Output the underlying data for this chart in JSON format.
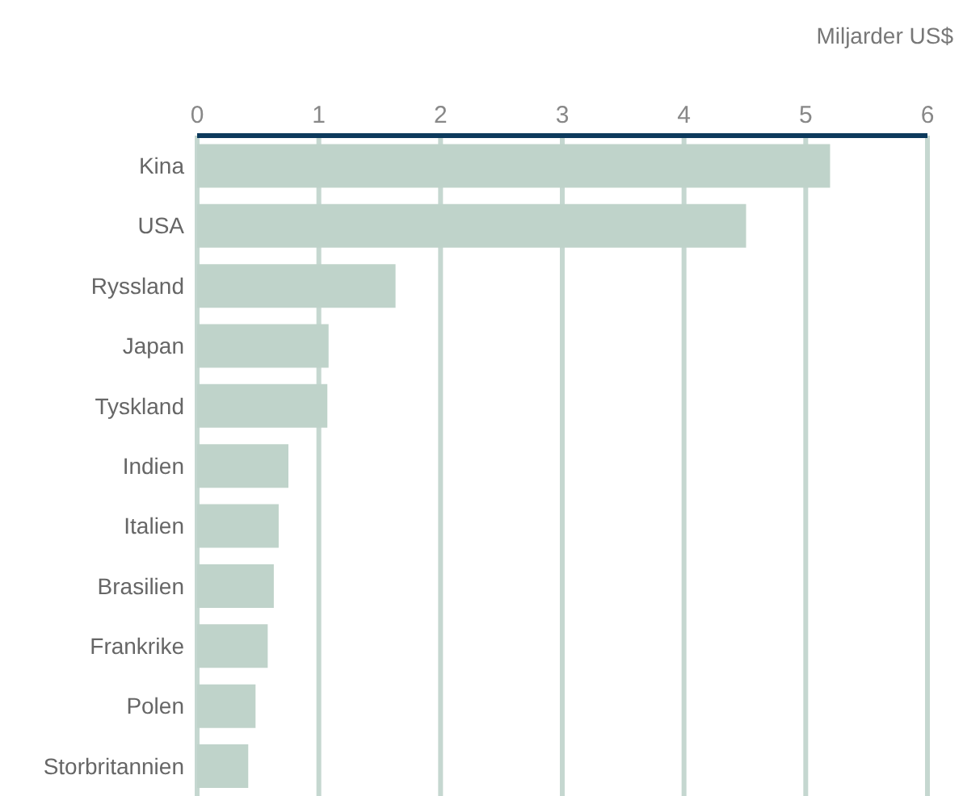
{
  "chart_data": {
    "type": "bar",
    "orientation": "horizontal",
    "xlabel": "Miljarder US$",
    "categories": [
      "Kina",
      "USA",
      "Ryssland",
      "Japan",
      "Tyskland",
      "Indien",
      "Italien",
      "Brasilien",
      "Frankrike",
      "Polen",
      "Storbritannien"
    ],
    "values": [
      5.2,
      4.51,
      1.63,
      1.08,
      1.07,
      0.75,
      0.67,
      0.63,
      0.58,
      0.48,
      0.42
    ],
    "color": "#bfd3ca",
    "xlim": [
      0,
      6
    ],
    "xticks": [
      0,
      1,
      2,
      3,
      4,
      5,
      6
    ],
    "grid": "x",
    "legend": false
  }
}
